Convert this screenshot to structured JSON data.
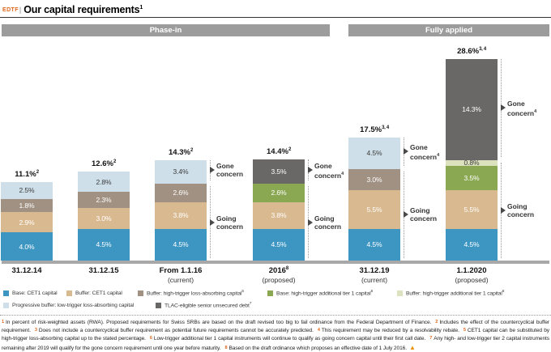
{
  "header": {
    "tag": "EDTF",
    "divider": "|",
    "title": "Our capital requirements",
    "title_sup": "1"
  },
  "chart_data": {
    "type": "bar",
    "stacked": true,
    "unit": "percent of risk-weighted assets (RWA)",
    "grid": false,
    "legend_position": "bottom",
    "group_headers": [
      {
        "label": "Phase-in"
      },
      {
        "label": "Fully applied"
      }
    ],
    "series_colors": {
      "base_cet1": {
        "fill": "#3D96C2",
        "text": "#FFFFFF"
      },
      "buffer_cet1": {
        "fill": "#D9B98F",
        "text": "#FFFFFF"
      },
      "buffer_ht_lac": {
        "fill": "#A09182",
        "text": "#FFFFFF"
      },
      "base_ht_at1": {
        "fill": "#8AA851",
        "text": "#FFFFFF"
      },
      "buffer_ht_at1": {
        "fill": "#DCE2BE",
        "text": "#3A3A3A"
      },
      "progressive_lt_lac": {
        "fill": "#CEDFE9",
        "text": "#3A3A3A"
      },
      "tlac": {
        "fill": "#6A6866",
        "text": "#FFFFFF"
      }
    },
    "bars": [
      {
        "label": "31.12.14",
        "label_sup": "",
        "sublabel": "",
        "total": "11.1%",
        "total_sup": "2",
        "segments": [
          {
            "key": "base_cet1",
            "value": 4.0,
            "label": "4.0%"
          },
          {
            "key": "buffer_cet1",
            "value": 2.9,
            "label": "2.9%"
          },
          {
            "key": "buffer_ht_lac",
            "value": 1.8,
            "label": "1.8%"
          },
          {
            "key": "progressive_lt_lac",
            "value": 2.5,
            "label": "2.5%"
          }
        ],
        "annotations": null
      },
      {
        "label": "31.12.15",
        "label_sup": "",
        "sublabel": "",
        "total": "12.6%",
        "total_sup": "2",
        "segments": [
          {
            "key": "base_cet1",
            "value": 4.5,
            "label": "4.5%"
          },
          {
            "key": "buffer_cet1",
            "value": 3.0,
            "label": "3.0%"
          },
          {
            "key": "buffer_ht_lac",
            "value": 2.3,
            "label": "2.3%"
          },
          {
            "key": "progressive_lt_lac",
            "value": 2.8,
            "label": "2.8%"
          }
        ],
        "annotations": null
      },
      {
        "label": "From 1.1.16",
        "label_sup": "",
        "sublabel": "(current)",
        "total": "14.3%",
        "total_sup": "2",
        "segments": [
          {
            "key": "base_cet1",
            "value": 4.5,
            "label": "4.5%"
          },
          {
            "key": "buffer_cet1",
            "value": 3.8,
            "label": "3.8%"
          },
          {
            "key": "buffer_ht_lac",
            "value": 2.6,
            "label": "2.6%"
          },
          {
            "key": "progressive_lt_lac",
            "value": 3.4,
            "label": "3.4%"
          }
        ],
        "annotations": {
          "gone_label": "Gone concern",
          "gone_sup": "",
          "going_label": "Going concern",
          "gone_segments": 1
        }
      },
      {
        "label": "2016",
        "label_sup": "8",
        "sublabel": "(proposed)",
        "total": "14.4%",
        "total_sup": "2",
        "segments": [
          {
            "key": "base_cet1",
            "value": 4.5,
            "label": "4.5%"
          },
          {
            "key": "buffer_cet1",
            "value": 3.8,
            "label": "3.8%"
          },
          {
            "key": "base_ht_at1",
            "value": 2.6,
            "label": "2.6%"
          },
          {
            "key": "tlac",
            "value": 3.5,
            "label": "3.5%"
          }
        ],
        "annotations": {
          "gone_label": "Gone concern",
          "gone_sup": "4",
          "going_label": "Going concern",
          "gone_segments": 1
        }
      },
      {
        "label": "31.12.19",
        "label_sup": "",
        "sublabel": "(current)",
        "total": "17.5%",
        "total_sup": "3, 4",
        "segments": [
          {
            "key": "base_cet1",
            "value": 4.5,
            "label": "4.5%"
          },
          {
            "key": "buffer_cet1",
            "value": 5.5,
            "label": "5.5%"
          },
          {
            "key": "buffer_ht_lac",
            "value": 3.0,
            "label": "3.0%"
          },
          {
            "key": "progressive_lt_lac",
            "value": 4.5,
            "label": "4.5%"
          }
        ],
        "annotations": {
          "gone_label": "Gone concern",
          "gone_sup": "4",
          "going_label": "Going concern",
          "gone_segments": 1
        }
      },
      {
        "label": "1.1.2020",
        "label_sup": "",
        "sublabel": "(proposed)",
        "total": "28.6%",
        "total_sup": "3, 4",
        "segments": [
          {
            "key": "base_cet1",
            "value": 4.5,
            "label": "4.5%"
          },
          {
            "key": "buffer_cet1",
            "value": 5.5,
            "label": "5.5%"
          },
          {
            "key": "base_ht_at1",
            "value": 3.5,
            "label": "3.5%"
          },
          {
            "key": "buffer_ht_at1",
            "value": 0.8,
            "label": "0.8%"
          },
          {
            "key": "tlac",
            "value": 14.3,
            "label": "14.3%"
          }
        ],
        "annotations": {
          "gone_label": "Gone concern",
          "gone_sup": "4",
          "going_label": "Going concern",
          "gone_segments": 1
        }
      }
    ],
    "legend_rows": [
      [
        {
          "key": "base_cet1",
          "label": "Base: CET1 capital",
          "sup": ""
        },
        {
          "key": "buffer_cet1",
          "label": "Buffer: CET1 capital",
          "sup": ""
        },
        {
          "key": "buffer_ht_lac",
          "label": "Buffer: high-trigger loss-absorbing capital",
          "sup": "5"
        },
        {
          "key": "base_ht_at1",
          "label": "Base: high-trigger additional tier 1 capital",
          "sup": "6"
        },
        {
          "key": "buffer_ht_at1",
          "label": "Buffer: high-trigger additional tier 1 capital",
          "sup": "6"
        }
      ],
      [
        {
          "key": "progressive_lt_lac",
          "label": "Progressive buffer: low-trigger loss-absorbing capital",
          "sup": ""
        },
        {
          "key": "tlac",
          "label": "TLAC-eligible senior unsecured debt",
          "sup": "7"
        }
      ]
    ]
  },
  "footnotes": [
    {
      "num": "1",
      "text": "In percent of risk-weighted assets (RWA). Proposed requirements for Swiss SRBs are based on the draft revised too big to fail ordinance from the Federal Department of Finance."
    },
    {
      "num": "2",
      "text": "Includes the effect of the countercyclical buffer requirement."
    },
    {
      "num": "3",
      "text": "Does not include a countercyclical buffer requirement as potential future requirements cannot be accurately predicted."
    },
    {
      "num": "4",
      "text": "This requirement may be reduced by a resolvability rebate."
    },
    {
      "num": "5",
      "text": "CET1 capital can be substituted by high-trigger loss-absorbing capital up to the stated percentage."
    },
    {
      "num": "6",
      "text": "Low-trigger additional tier 1 capital instruments will continue to qualify as going concern capital until their first call date."
    },
    {
      "num": "7",
      "text": "Any high- and low-trigger tier 2 capital instruments remaining after 2019 will qualify for the gone concern requirement until one year before maturity."
    },
    {
      "num": "8",
      "text": "Based on the draft ordinance which proposes an effective date of 1 July 2016."
    }
  ],
  "footnote_warning_icon": "▲"
}
